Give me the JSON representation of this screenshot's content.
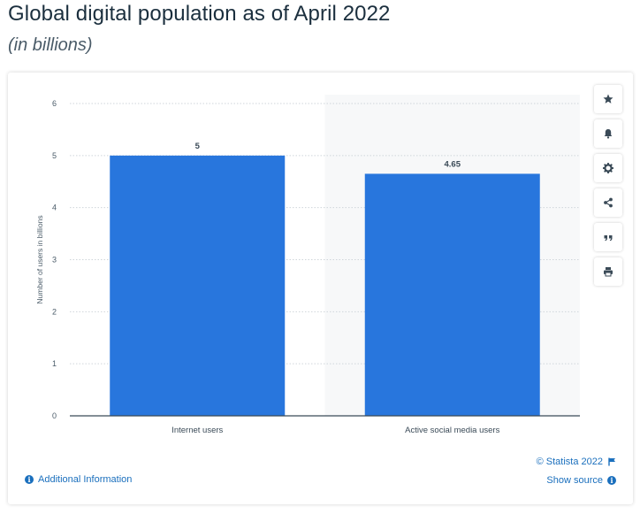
{
  "title": "Global digital population as of April 2022",
  "subtitle": "(in billions)",
  "chart_data": {
    "type": "bar",
    "categories": [
      "Internet users",
      "Active social media users"
    ],
    "values": [
      5,
      4.65
    ],
    "value_labels": [
      "5",
      "4.65"
    ],
    "ylabel": "Number of users in billions",
    "xlabel": "",
    "ylim": [
      0,
      6
    ],
    "yticks": [
      0,
      1,
      2,
      3,
      4,
      5,
      6
    ],
    "grid": true,
    "bar_color": "#2876dd"
  },
  "toolbar": {
    "buttons": [
      {
        "name": "favorite-button",
        "icon": "star-icon"
      },
      {
        "name": "notification-button",
        "icon": "bell-icon"
      },
      {
        "name": "settings-button",
        "icon": "gear-icon"
      },
      {
        "name": "share-button",
        "icon": "share-icon"
      },
      {
        "name": "cite-button",
        "icon": "quote-icon"
      },
      {
        "name": "print-button",
        "icon": "printer-icon"
      }
    ]
  },
  "footer": {
    "additional_info": "Additional Information",
    "copyright": "© Statista 2022",
    "show_source": "Show source"
  },
  "colors": {
    "link": "#1a6fbd",
    "title": "#1b2f3e",
    "icon": "#3a4a57"
  }
}
